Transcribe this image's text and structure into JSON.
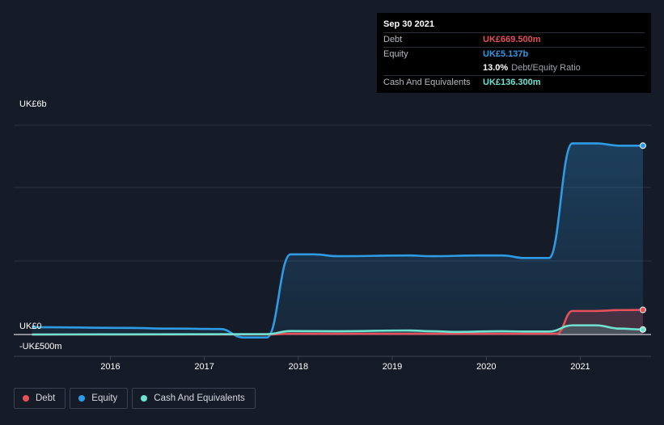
{
  "chart_data": {
    "type": "line",
    "title": "",
    "xlabel": "",
    "ylabel": "",
    "ylim": [
      -500,
      6000
    ],
    "x_ticks": [
      "2016",
      "2017",
      "2018",
      "2019",
      "2020",
      "2021"
    ],
    "y_tick_labels": {
      "top": "UK£6b",
      "zero": "UK£0",
      "bottom": "-UK£500m"
    },
    "grid": true,
    "legend_position": "bottom-left",
    "series": [
      {
        "name": "Debt",
        "color": "#e5505a",
        "points": [
          [
            "2015-03",
            0
          ],
          [
            "2017-09",
            0
          ],
          [
            "2017-12",
            20
          ],
          [
            "2020-09",
            20
          ],
          [
            "2020-10",
            20
          ],
          [
            "2020-12",
            640
          ],
          [
            "2021-03",
            640
          ],
          [
            "2021-06",
            665
          ],
          [
            "2021-09",
            669.5
          ]
        ]
      },
      {
        "name": "Equity",
        "color": "#2e9be5",
        "points": [
          [
            "2015-03",
            200
          ],
          [
            "2016-03",
            180
          ],
          [
            "2016-09",
            160
          ],
          [
            "2017-03",
            150
          ],
          [
            "2017-06",
            -80
          ],
          [
            "2017-09",
            -80
          ],
          [
            "2017-12",
            2180
          ],
          [
            "2018-03",
            2180
          ],
          [
            "2018-06",
            2130
          ],
          [
            "2019-03",
            2150
          ],
          [
            "2019-06",
            2130
          ],
          [
            "2019-12",
            2150
          ],
          [
            "2020-03",
            2150
          ],
          [
            "2020-06",
            2080
          ],
          [
            "2020-09",
            2080
          ],
          [
            "2020-12",
            5200
          ],
          [
            "2021-03",
            5200
          ],
          [
            "2021-06",
            5137
          ],
          [
            "2021-09",
            5137
          ]
        ]
      },
      {
        "name": "Cash And Equivalents",
        "color": "#6fe3d2",
        "points": [
          [
            "2015-03",
            0
          ],
          [
            "2016-03",
            5
          ],
          [
            "2017-09",
            10
          ],
          [
            "2017-12",
            95
          ],
          [
            "2018-06",
            90
          ],
          [
            "2019-03",
            110
          ],
          [
            "2019-06",
            90
          ],
          [
            "2019-09",
            70
          ],
          [
            "2020-03",
            90
          ],
          [
            "2020-06",
            80
          ],
          [
            "2020-09",
            80
          ],
          [
            "2020-12",
            250
          ],
          [
            "2021-03",
            250
          ],
          [
            "2021-06",
            160
          ],
          [
            "2021-09",
            136.3
          ]
        ]
      }
    ]
  },
  "tooltip": {
    "date": "Sep 30 2021",
    "debt_label": "Debt",
    "debt_value": "UK£669.500m",
    "equity_label": "Equity",
    "equity_value": "UK£5.137b",
    "ratio_value": "13.0%",
    "ratio_label": "Debt/Equity Ratio",
    "cash_label": "Cash And Equivalents",
    "cash_value": "UK£136.300m"
  },
  "legend": [
    "Debt",
    "Equity",
    "Cash And Equivalents"
  ]
}
